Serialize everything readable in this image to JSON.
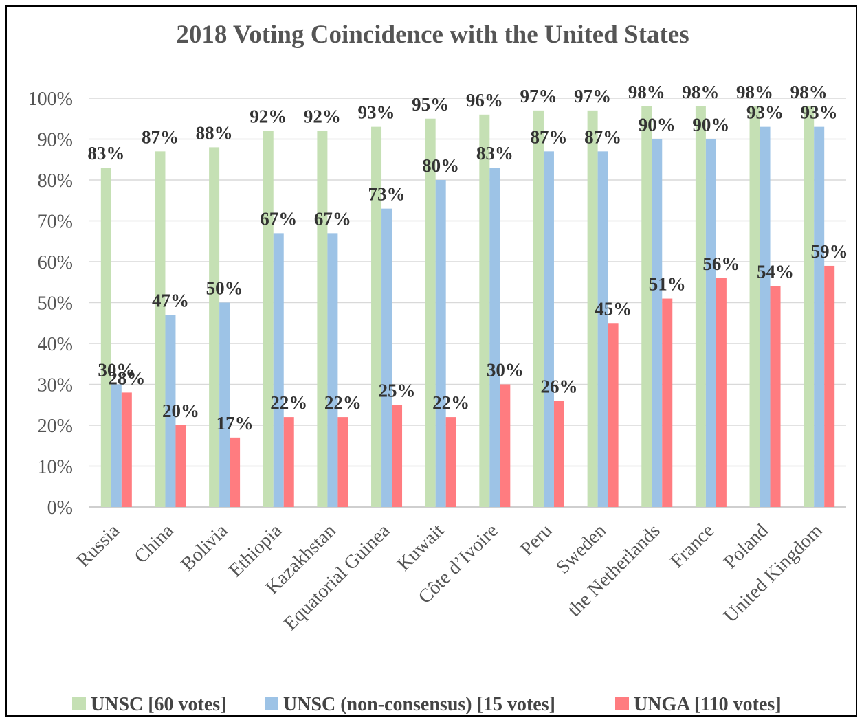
{
  "chart_data": {
    "type": "bar",
    "title": "2018 Voting Coincidence with the United States",
    "xlabel": "",
    "ylabel": "",
    "ylim": [
      0,
      100
    ],
    "y_ticks": [
      "0%",
      "10%",
      "20%",
      "30%",
      "40%",
      "50%",
      "60%",
      "70%",
      "80%",
      "90%",
      "100%"
    ],
    "grid": true,
    "legend_position": "bottom",
    "categories": [
      "Russia",
      "China",
      "Bolivia",
      "Ethiopia",
      "Kazakhstan",
      "Equatorial Guinea",
      "Kuwait",
      "Côte d’Ivoire",
      "Peru",
      "Sweden",
      "the Netherlands",
      "France",
      "Poland",
      "United Kingdom"
    ],
    "series": [
      {
        "name": "UNSC [60 votes]",
        "color": "#c5e0b4",
        "values": [
          83,
          87,
          88,
          92,
          92,
          93,
          95,
          96,
          97,
          97,
          98,
          98,
          98,
          98
        ],
        "labels": [
          "83%",
          "87%",
          "88%",
          "92%",
          "92%",
          "93%",
          "95%",
          "96%",
          "97%",
          "97%",
          "98%",
          "98%",
          "98%",
          "98%"
        ]
      },
      {
        "name": "UNSC (non-consensus) [15 votes]",
        "color": "#9dc3e6",
        "values": [
          30,
          47,
          50,
          67,
          67,
          73,
          80,
          83,
          87,
          87,
          90,
          90,
          93,
          93
        ],
        "labels": [
          "30%",
          "47%",
          "50%",
          "67%",
          "67%",
          "73%",
          "80%",
          "83%",
          "87%",
          "87%",
          "90%",
          "90%",
          "93%",
          "93%"
        ]
      },
      {
        "name": "UNGA [110 votes]",
        "color": "#ff7c80",
        "values": [
          28,
          20,
          17,
          22,
          22,
          25,
          22,
          30,
          26,
          45,
          51,
          56,
          54,
          59
        ],
        "labels": [
          "28%",
          "20%",
          "17%",
          "22%",
          "22%",
          "25%",
          "22%",
          "30%",
          "26%",
          "45%",
          "51%",
          "56%",
          "54%",
          "59%"
        ]
      }
    ]
  }
}
